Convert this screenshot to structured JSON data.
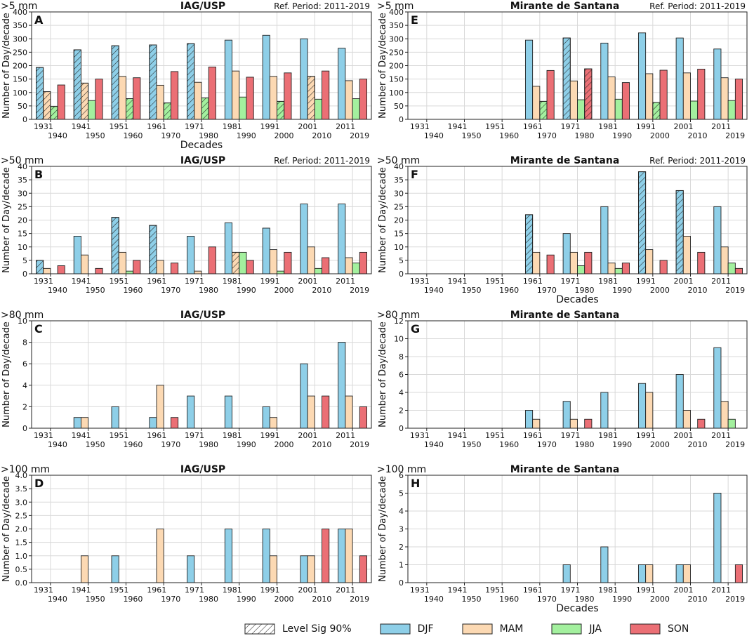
{
  "colors": {
    "DJF": "#8ecfe8",
    "MAM": "#fcd9b3",
    "JJA": "#a3f09e",
    "SON": "#eb6f75",
    "edge": "#222222",
    "grid": "#d9d9d9"
  },
  "legend": {
    "sig_label": "Level Sig 90%",
    "seasons": [
      "DJF",
      "MAM",
      "JJA",
      "SON"
    ]
  },
  "decades_label": "Decades",
  "chart_data": [
    {
      "panel": "A",
      "type": "bar",
      "threshold": ">5 mm",
      "station": "IAG/USP",
      "ref": "Ref. Period: 2011-2019",
      "ylabel": "Number of Day/decade",
      "xlabel": "Decades",
      "ylim": [
        0,
        400
      ],
      "yticks": [
        0,
        50,
        100,
        150,
        200,
        250,
        300,
        350,
        400
      ],
      "categories_top": [
        "1931",
        "1941",
        "1951",
        "1961",
        "1971",
        "1981",
        "1991",
        "2001",
        "2011"
      ],
      "categories_bottom": [
        "1940",
        "1950",
        "1960",
        "1970",
        "1980",
        "1990",
        "2000",
        "2010",
        "2019"
      ],
      "series": [
        {
          "name": "DJF",
          "values": [
            193,
            259,
            274,
            277,
            282,
            295,
            313,
            300,
            265
          ],
          "sig": [
            1,
            1,
            1,
            1,
            1,
            0,
            0,
            0,
            0
          ]
        },
        {
          "name": "MAM",
          "values": [
            103,
            135,
            160,
            127,
            138,
            180,
            160,
            160,
            144
          ],
          "sig": [
            1,
            1,
            0,
            0,
            0,
            0,
            0,
            1,
            0
          ]
        },
        {
          "name": "JJA",
          "values": [
            48,
            70,
            77,
            61,
            80,
            83,
            67,
            75,
            77
          ],
          "sig": [
            1,
            0,
            1,
            1,
            1,
            0,
            1,
            0,
            0
          ]
        },
        {
          "name": "SON",
          "values": [
            128,
            150,
            155,
            178,
            195,
            157,
            173,
            180,
            150
          ],
          "sig": [
            0,
            0,
            0,
            0,
            0,
            0,
            0,
            0,
            0
          ]
        }
      ]
    },
    {
      "panel": "B",
      "type": "bar",
      "threshold": ">50 mm",
      "station": "IAG/USP",
      "ref": "Ref. Period: 2011-2019",
      "ylabel": "Number of Day/decade",
      "xlabel": "",
      "ylim": [
        0,
        40
      ],
      "yticks": [
        0,
        5,
        10,
        15,
        20,
        25,
        30,
        35,
        40
      ],
      "categories_top": [
        "1931",
        "1941",
        "1951",
        "1961",
        "1971",
        "1981",
        "1991",
        "2001",
        "2011"
      ],
      "categories_bottom": [
        "1940",
        "1950",
        "1960",
        "1970",
        "1980",
        "1990",
        "2000",
        "2010",
        "2019"
      ],
      "series": [
        {
          "name": "DJF",
          "values": [
            5,
            14,
            21,
            18,
            14,
            19,
            17,
            26,
            26
          ],
          "sig": [
            1,
            0,
            1,
            1,
            0,
            0,
            0,
            0,
            0
          ]
        },
        {
          "name": "MAM",
          "values": [
            2,
            7,
            8,
            5,
            1,
            8,
            9,
            10,
            6
          ],
          "sig": [
            0,
            0,
            0,
            0,
            0,
            1,
            0,
            0,
            0
          ]
        },
        {
          "name": "JJA",
          "values": [
            0,
            0,
            1,
            0,
            0,
            8,
            1,
            2,
            4
          ],
          "sig": [
            0,
            0,
            0,
            0,
            0,
            0,
            0,
            0,
            0
          ]
        },
        {
          "name": "SON",
          "values": [
            3,
            2,
            5,
            4,
            10,
            5,
            8,
            6,
            8
          ],
          "sig": [
            0,
            0,
            0,
            0,
            0,
            0,
            0,
            0,
            0
          ]
        }
      ]
    },
    {
      "panel": "C",
      "type": "bar",
      "threshold": ">80 mm",
      "station": "IAG/USP",
      "ref": "",
      "ylabel": "Number of Day/decade",
      "xlabel": "",
      "ylim": [
        0,
        10
      ],
      "yticks": [
        0,
        2,
        4,
        6,
        8,
        10
      ],
      "categories_top": [
        "1931",
        "1941",
        "1951",
        "1961",
        "1971",
        "1981",
        "1991",
        "2001",
        "2011"
      ],
      "categories_bottom": [
        "1940",
        "1950",
        "1960",
        "1970",
        "1980",
        "1990",
        "2000",
        "2010",
        "2019"
      ],
      "series": [
        {
          "name": "DJF",
          "values": [
            0,
            1,
            2,
            1,
            3,
            3,
            2,
            6,
            8
          ],
          "sig": [
            0,
            0,
            0,
            0,
            0,
            0,
            0,
            0,
            0
          ]
        },
        {
          "name": "MAM",
          "values": [
            0,
            1,
            0,
            4,
            0,
            0,
            1,
            3,
            3
          ],
          "sig": [
            0,
            0,
            0,
            0,
            0,
            0,
            0,
            0,
            0
          ]
        },
        {
          "name": "JJA",
          "values": [
            0,
            0,
            0,
            0,
            0,
            0,
            0,
            0,
            0
          ],
          "sig": [
            0,
            0,
            0,
            0,
            0,
            0,
            0,
            0,
            0
          ]
        },
        {
          "name": "SON",
          "values": [
            0,
            0,
            0,
            1,
            0,
            0,
            0,
            3,
            2
          ],
          "sig": [
            0,
            0,
            0,
            0,
            0,
            0,
            0,
            0,
            0
          ]
        }
      ]
    },
    {
      "panel": "D",
      "type": "bar",
      "threshold": ">100 mm",
      "station": "IAG/USP",
      "ref": "",
      "ylabel": "Number of Day/decade",
      "xlabel": "",
      "ylim": [
        0,
        4
      ],
      "yticks": [
        "0.0",
        "0.5",
        "1.0",
        "1.5",
        "2.0",
        "2.5",
        "3.0",
        "3.5",
        "4.0"
      ],
      "categories_top": [
        "1931",
        "1941",
        "1951",
        "1961",
        "1971",
        "1981",
        "1991",
        "2001",
        "2011"
      ],
      "categories_bottom": [
        "1940",
        "1950",
        "1960",
        "1970",
        "1980",
        "1990",
        "2000",
        "2010",
        "2019"
      ],
      "series": [
        {
          "name": "DJF",
          "values": [
            0,
            0,
            1,
            0,
            1,
            2,
            2,
            1,
            2
          ],
          "sig": [
            0,
            0,
            0,
            0,
            0,
            0,
            0,
            0,
            0
          ]
        },
        {
          "name": "MAM",
          "values": [
            0,
            1,
            0,
            2,
            0,
            0,
            1,
            1,
            2
          ],
          "sig": [
            0,
            0,
            0,
            0,
            0,
            0,
            0,
            0,
            0
          ]
        },
        {
          "name": "JJA",
          "values": [
            0,
            0,
            0,
            0,
            0,
            0,
            0,
            0,
            0
          ],
          "sig": [
            0,
            0,
            0,
            0,
            0,
            0,
            0,
            0,
            0
          ]
        },
        {
          "name": "SON",
          "values": [
            0,
            0,
            0,
            0,
            0,
            0,
            0,
            2,
            1
          ],
          "sig": [
            0,
            0,
            0,
            0,
            0,
            0,
            0,
            0,
            0
          ]
        }
      ]
    },
    {
      "panel": "E",
      "type": "bar",
      "threshold": ">5 mm",
      "station": "Mirante de Santana",
      "ref": "Ref. Period: 2011-2019",
      "ylabel": "Number of Day/decade",
      "xlabel": "",
      "ylim": [
        0,
        400
      ],
      "yticks": [
        0,
        50,
        100,
        150,
        200,
        250,
        300,
        350,
        400
      ],
      "categories_top": [
        "1931",
        "1941",
        "1951",
        "1961",
        "1971",
        "1981",
        "1991",
        "2001",
        "2011"
      ],
      "categories_bottom": [
        "1940",
        "1950",
        "1960",
        "1970",
        "1980",
        "1990",
        "2000",
        "2010",
        "2019"
      ],
      "series": [
        {
          "name": "DJF",
          "values": [
            0,
            0,
            0,
            295,
            303,
            284,
            322,
            303,
            262
          ],
          "sig": [
            0,
            0,
            0,
            0,
            1,
            0,
            0,
            0,
            0
          ]
        },
        {
          "name": "MAM",
          "values": [
            0,
            0,
            0,
            123,
            143,
            158,
            170,
            173,
            155
          ],
          "sig": [
            0,
            0,
            0,
            0,
            0,
            0,
            0,
            0,
            0
          ]
        },
        {
          "name": "JJA",
          "values": [
            0,
            0,
            0,
            67,
            73,
            75,
            63,
            68,
            70
          ],
          "sig": [
            0,
            0,
            0,
            1,
            0,
            0,
            1,
            0,
            0
          ]
        },
        {
          "name": "SON",
          "values": [
            0,
            0,
            0,
            182,
            188,
            137,
            183,
            187,
            150
          ],
          "sig": [
            0,
            0,
            0,
            0,
            1,
            0,
            0,
            0,
            0
          ]
        }
      ]
    },
    {
      "panel": "F",
      "type": "bar",
      "threshold": ">50 mm",
      "station": "Mirante de Santana",
      "ref": "Ref. Period: 2011-2019",
      "ylabel": "Number of Day/decade",
      "xlabel": "Decades",
      "ylim": [
        0,
        40
      ],
      "yticks": [
        0,
        5,
        10,
        15,
        20,
        25,
        30,
        35,
        40
      ],
      "categories_top": [
        "1931",
        "1941",
        "1951",
        "1961",
        "1971",
        "1981",
        "1991",
        "2001",
        "2011"
      ],
      "categories_bottom": [
        "1940",
        "1950",
        "1960",
        "1970",
        "1980",
        "1990",
        "2000",
        "2010",
        "2019"
      ],
      "series": [
        {
          "name": "DJF",
          "values": [
            0,
            0,
            0,
            22,
            15,
            25,
            38,
            31,
            25
          ],
          "sig": [
            0,
            0,
            0,
            1,
            0,
            0,
            1,
            1,
            0
          ]
        },
        {
          "name": "MAM",
          "values": [
            0,
            0,
            0,
            8,
            8,
            4,
            9,
            14,
            10
          ],
          "sig": [
            0,
            0,
            0,
            0,
            0,
            0,
            0,
            0,
            0
          ]
        },
        {
          "name": "JJA",
          "values": [
            0,
            0,
            0,
            0,
            3,
            2,
            0,
            0,
            4
          ],
          "sig": [
            0,
            0,
            0,
            0,
            0,
            0,
            0,
            0,
            0
          ]
        },
        {
          "name": "SON",
          "values": [
            0,
            0,
            0,
            7,
            8,
            4,
            5,
            8,
            2
          ],
          "sig": [
            0,
            0,
            0,
            0,
            0,
            0,
            0,
            0,
            0
          ]
        }
      ]
    },
    {
      "panel": "G",
      "type": "bar",
      "threshold": ">80 mm",
      "station": "Mirante de Santana",
      "ref": "",
      "ylabel": "Number of Day/decade",
      "xlabel": "",
      "ylim": [
        0,
        12
      ],
      "yticks": [
        0,
        2,
        4,
        6,
        8,
        10,
        12
      ],
      "categories_top": [
        "1931",
        "1941",
        "1951",
        "1961",
        "1971",
        "1981",
        "1991",
        "2001",
        "2011"
      ],
      "categories_bottom": [
        "1940",
        "1950",
        "1960",
        "1970",
        "1980",
        "1990",
        "2000",
        "2010",
        "2019"
      ],
      "series": [
        {
          "name": "DJF",
          "values": [
            0,
            0,
            0,
            2,
            3,
            4,
            5,
            6,
            9
          ],
          "sig": [
            0,
            0,
            0,
            0,
            0,
            0,
            0,
            0,
            0
          ]
        },
        {
          "name": "MAM",
          "values": [
            0,
            0,
            0,
            1,
            1,
            0,
            4,
            2,
            3
          ],
          "sig": [
            0,
            0,
            0,
            0,
            0,
            0,
            0,
            0,
            0
          ]
        },
        {
          "name": "JJA",
          "values": [
            0,
            0,
            0,
            0,
            0,
            0,
            0,
            0,
            1
          ],
          "sig": [
            0,
            0,
            0,
            0,
            0,
            0,
            0,
            0,
            0
          ]
        },
        {
          "name": "SON",
          "values": [
            0,
            0,
            0,
            0,
            1,
            0,
            0,
            1,
            0
          ],
          "sig": [
            0,
            0,
            0,
            0,
            0,
            0,
            0,
            0,
            0
          ]
        }
      ]
    },
    {
      "panel": "H",
      "type": "bar",
      "threshold": ">100 mm",
      "station": "Mirante de Santana",
      "ref": "",
      "ylabel": "Number of Day/decade",
      "xlabel": "Decades",
      "ylim": [
        0,
        6
      ],
      "yticks": [
        0,
        1,
        2,
        3,
        4,
        5,
        6
      ],
      "categories_top": [
        "1931",
        "1941",
        "1951",
        "1961",
        "1971",
        "1981",
        "1991",
        "2001",
        "2011"
      ],
      "categories_bottom": [
        "1940",
        "1950",
        "1960",
        "1970",
        "1980",
        "1990",
        "2000",
        "2010",
        "2019"
      ],
      "series": [
        {
          "name": "DJF",
          "values": [
            0,
            0,
            0,
            0,
            1,
            2,
            1,
            1,
            5
          ],
          "sig": [
            0,
            0,
            0,
            0,
            0,
            0,
            0,
            0,
            0
          ]
        },
        {
          "name": "MAM",
          "values": [
            0,
            0,
            0,
            0,
            0,
            0,
            1,
            1,
            0
          ],
          "sig": [
            0,
            0,
            0,
            0,
            0,
            0,
            0,
            0,
            0
          ]
        },
        {
          "name": "JJA",
          "values": [
            0,
            0,
            0,
            0,
            0,
            0,
            0,
            0,
            0
          ],
          "sig": [
            0,
            0,
            0,
            0,
            0,
            0,
            0,
            0,
            0
          ]
        },
        {
          "name": "SON",
          "values": [
            0,
            0,
            0,
            0,
            0,
            0,
            0,
            0,
            1
          ],
          "sig": [
            0,
            0,
            0,
            0,
            0,
            0,
            0,
            0,
            0
          ]
        }
      ]
    }
  ]
}
